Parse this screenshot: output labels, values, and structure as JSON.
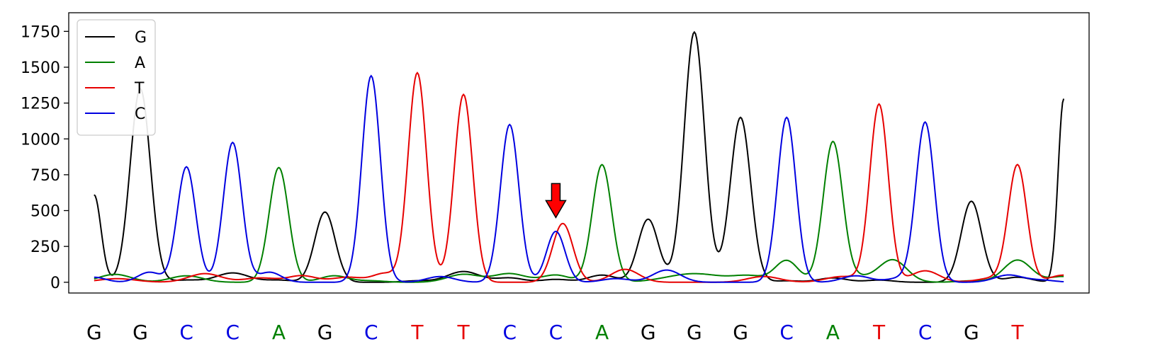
{
  "chart_data": {
    "type": "line",
    "ylim": [
      -75,
      1880
    ],
    "xlim": [
      -0.55,
      21.55
    ],
    "yticks": [
      0,
      250,
      500,
      750,
      1000,
      1250,
      1500,
      1750
    ],
    "grid": false,
    "legend_position": "top-left",
    "colors": {
      "G": "#000000",
      "A": "#008000",
      "T": "#e60000",
      "C": "#0000e0"
    },
    "sequence": [
      "G",
      "G",
      "C",
      "C",
      "A",
      "G",
      "C",
      "T",
      "T",
      "C",
      "C",
      "A",
      "G",
      "G",
      "G",
      "C",
      "A",
      "T",
      "C",
      "G",
      "T"
    ],
    "series": [
      {
        "name": "G",
        "color": "#000000",
        "peaks": [
          [
            0,
            610,
            0.15
          ],
          [
            1,
            1350,
            0.22
          ],
          [
            2,
            15,
            0.3
          ],
          [
            3,
            65,
            0.35
          ],
          [
            4,
            15,
            0.3
          ],
          [
            5,
            490,
            0.22
          ],
          [
            7,
            10,
            0.3
          ],
          [
            8,
            75,
            0.35
          ],
          [
            9,
            30,
            0.3
          ],
          [
            10,
            20,
            0.3
          ],
          [
            11,
            50,
            0.3
          ],
          [
            12,
            440,
            0.22
          ],
          [
            13,
            1745,
            0.22
          ],
          [
            14,
            1150,
            0.22
          ],
          [
            15,
            10,
            0.3
          ],
          [
            16,
            30,
            0.3
          ],
          [
            17,
            15,
            0.3
          ],
          [
            19,
            565,
            0.22
          ],
          [
            20,
            35,
            0.3
          ],
          [
            21,
            1280,
            0.12
          ]
        ]
      },
      {
        "name": "A",
        "color": "#008000",
        "peaks": [
          [
            0.45,
            55,
            0.35
          ],
          [
            2,
            45,
            0.35
          ],
          [
            4,
            800,
            0.21
          ],
          [
            5.2,
            45,
            0.3
          ],
          [
            6,
            10,
            0.3
          ],
          [
            8,
            55,
            0.35
          ],
          [
            9,
            60,
            0.35
          ],
          [
            10,
            50,
            0.3
          ],
          [
            11,
            820,
            0.21
          ],
          [
            13,
            60,
            0.6
          ],
          [
            14.2,
            40,
            0.35
          ],
          [
            15,
            150,
            0.25
          ],
          [
            16,
            970,
            0.21
          ],
          [
            16.5,
            35,
            0.35
          ],
          [
            17.3,
            155,
            0.3
          ],
          [
            19,
            10,
            0.3
          ],
          [
            20,
            155,
            0.3
          ],
          [
            21,
            40,
            0.3
          ]
        ]
      },
      {
        "name": "T",
        "color": "#e60000",
        "peaks": [
          [
            0.5,
            25,
            0.4
          ],
          [
            2.4,
            60,
            0.35
          ],
          [
            3.6,
            30,
            0.35
          ],
          [
            4.5,
            45,
            0.3
          ],
          [
            5.5,
            35,
            0.35
          ],
          [
            6.3,
            60,
            0.25
          ],
          [
            7,
            1460,
            0.2
          ],
          [
            8,
            1310,
            0.2
          ],
          [
            10.15,
            410,
            0.22
          ],
          [
            11.5,
            90,
            0.3
          ],
          [
            14.5,
            40,
            0.35
          ],
          [
            16.2,
            40,
            0.35
          ],
          [
            17,
            1240,
            0.2
          ],
          [
            18,
            80,
            0.3
          ],
          [
            19.5,
            30,
            0.35
          ],
          [
            20,
            810,
            0.2
          ],
          [
            21,
            50,
            0.3
          ]
        ]
      },
      {
        "name": "C",
        "color": "#0000e0",
        "peaks": [
          [
            0,
            35,
            0.25
          ],
          [
            1.2,
            70,
            0.25
          ],
          [
            2,
            805,
            0.2
          ],
          [
            3,
            975,
            0.2
          ],
          [
            3.8,
            70,
            0.25
          ],
          [
            6,
            1440,
            0.2
          ],
          [
            7.5,
            40,
            0.3
          ],
          [
            9,
            1100,
            0.2
          ],
          [
            10,
            355,
            0.2
          ],
          [
            11.3,
            25,
            0.3
          ],
          [
            12.4,
            85,
            0.3
          ],
          [
            15,
            1150,
            0.2
          ],
          [
            16.5,
            45,
            0.3
          ],
          [
            17.5,
            30,
            0.3
          ],
          [
            18,
            1110,
            0.2
          ],
          [
            19.8,
            50,
            0.3
          ],
          [
            20.5,
            15,
            0.3
          ]
        ]
      }
    ],
    "annotation": {
      "type": "red-down-arrow",
      "x": 10,
      "y": 560
    }
  }
}
